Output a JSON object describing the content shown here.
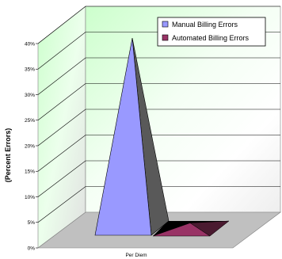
{
  "chart_data": {
    "type": "bar",
    "chart_style": "3d-pyramid",
    "title": "",
    "xlabel": "",
    "ylabel": "(Percent Errors)",
    "ylim": [
      0,
      40
    ],
    "y_ticks": [
      "0%",
      "5%",
      "10%",
      "15%",
      "20%",
      "25%",
      "30%",
      "35%",
      "40%"
    ],
    "categories": [
      "Per Diem"
    ],
    "series": [
      {
        "name": "Manual Billing Errors",
        "values": [
          40
        ],
        "color": "#9999ff"
      },
      {
        "name": "Automated Billing Errors",
        "values": [
          1
        ],
        "color": "#993366"
      }
    ],
    "legend_position": "top-right",
    "grid": true,
    "wall_color": "#ccffcc",
    "floor_color": "#c0c0c0"
  }
}
